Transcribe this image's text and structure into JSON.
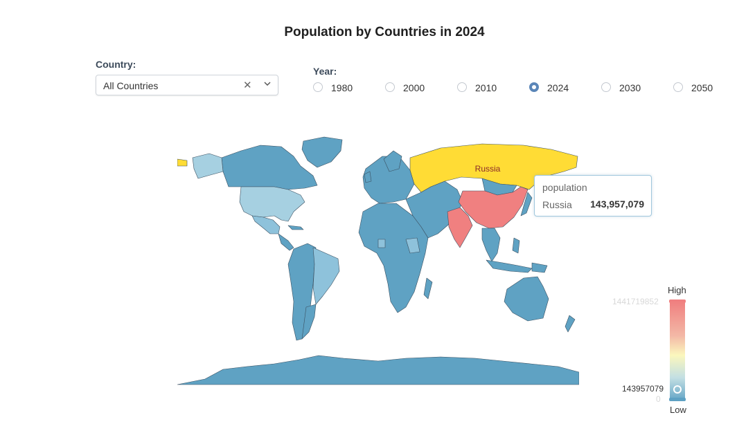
{
  "title": "Population by Countries in 2024",
  "country_filter": {
    "label": "Country:",
    "value": "All Countries",
    "clear_icon": "close-icon",
    "dropdown_icon": "chevron-down-icon"
  },
  "year_filter": {
    "label": "Year:",
    "options": [
      {
        "label": "1980",
        "checked": false
      },
      {
        "label": "2000",
        "checked": false
      },
      {
        "label": "2010",
        "checked": false
      },
      {
        "label": "2024",
        "checked": true
      },
      {
        "label": "2030",
        "checked": false
      },
      {
        "label": "2050",
        "checked": false
      }
    ]
  },
  "map": {
    "highlighted_country": "Russia",
    "highlight_color": "#ffdc35",
    "colors": {
      "high": "#f08080",
      "mid": "#fbf7bd",
      "low": "#6aa9c8",
      "default": "#5fa2c3"
    }
  },
  "tooltip": {
    "title": "population",
    "name": "Russia",
    "value": "143,957,079"
  },
  "visual_map": {
    "high_label": "High",
    "low_label": "Low",
    "max_value": "1441719852",
    "min_value": "0",
    "current_value": "143957079"
  }
}
